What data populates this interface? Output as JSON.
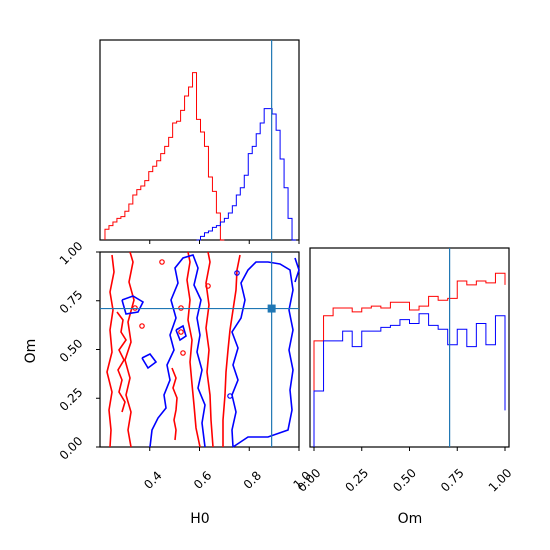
{
  "chart_data": [
    {
      "type": "step-histogram",
      "panel": "H0 marginal",
      "xlim": [
        0.2,
        1.0
      ],
      "bins": [
        0.22,
        0.236,
        0.252,
        0.268,
        0.284,
        0.3,
        0.316,
        0.332,
        0.348,
        0.364,
        0.38,
        0.396,
        0.412,
        0.428,
        0.444,
        0.46,
        0.476,
        0.492,
        0.508,
        0.524,
        0.54,
        0.556,
        0.572,
        0.588,
        0.604,
        0.62,
        0.636,
        0.652,
        0.668,
        0.684,
        0.7,
        0.716,
        0.732,
        0.748,
        0.764,
        0.78,
        0.796,
        0.812,
        0.828,
        0.844,
        0.86,
        0.876,
        0.892,
        0.908,
        0.924,
        0.94,
        0.956,
        0.972,
        0.988,
        1.004
      ],
      "series": [
        {
          "color": "#ff0000",
          "counts": [
            0.06,
            0.08,
            0.1,
            0.12,
            0.13,
            0.16,
            0.2,
            0.25,
            0.28,
            0.3,
            0.33,
            0.38,
            0.41,
            0.44,
            0.48,
            0.52,
            0.57,
            0.65,
            0.66,
            0.72,
            0.8,
            0.85,
            0.93,
            0.67,
            0.6,
            0.52,
            0.35,
            0.27,
            0.15,
            0.0
          ]
        },
        {
          "color": "#0000ff",
          "counts": [
            0.0,
            0.02,
            0.04,
            0.05,
            0.07,
            0.08,
            0.1,
            0.12,
            0.15,
            0.19,
            0.25,
            0.29,
            0.36,
            0.48,
            0.52,
            0.59,
            0.65,
            0.73,
            0.73,
            0.7,
            0.61,
            0.45,
            0.29,
            0.12,
            0.0
          ],
          "start_bin": 23
        }
      ],
      "truth": 0.89
    },
    {
      "type": "contour",
      "panel": "H0 vs Om",
      "xlabel": "H0",
      "ylabel": "Om",
      "xlim": [
        0.2,
        1.0
      ],
      "ylim": [
        0.0,
        1.0
      ],
      "xticks": [
        "0.4",
        "0.6",
        "0.8",
        "1.0"
      ],
      "yticks": [
        "0.00",
        "0.25",
        "0.50",
        "0.75",
        "1.00"
      ],
      "series": [
        {
          "color": "#ff0000",
          "levels": [
            "inner",
            "outer"
          ]
        },
        {
          "color": "#0000ff",
          "levels": [
            "inner",
            "outer"
          ]
        }
      ],
      "truth": {
        "H0": 0.89,
        "Om": 0.71
      }
    },
    {
      "type": "step-histogram",
      "panel": "Om marginal",
      "xlabel": "Om",
      "xlim": [
        0.0,
        1.0
      ],
      "xticks": [
        "0.00",
        "0.25",
        "0.50",
        "0.75",
        "1.00"
      ],
      "bins": [
        0.0,
        0.05,
        0.1,
        0.15,
        0.2,
        0.25,
        0.3,
        0.35,
        0.4,
        0.45,
        0.5,
        0.55,
        0.6,
        0.65,
        0.7,
        0.75,
        0.8,
        0.85,
        0.9,
        0.95,
        1.0
      ],
      "series": [
        {
          "color": "#ff0000",
          "counts": [
            0.55,
            0.68,
            0.72,
            0.72,
            0.7,
            0.72,
            0.73,
            0.72,
            0.75,
            0.75,
            0.71,
            0.73,
            0.78,
            0.76,
            0.77,
            0.86,
            0.84,
            0.86,
            0.85,
            0.9,
            0.84
          ]
        },
        {
          "color": "#0000ff",
          "counts": [
            0.29,
            0.55,
            0.55,
            0.6,
            0.52,
            0.6,
            0.6,
            0.62,
            0.63,
            0.66,
            0.64,
            0.69,
            0.63,
            0.61,
            0.53,
            0.61,
            0.52,
            0.64,
            0.53,
            0.68,
            0.19
          ]
        }
      ],
      "truth": 0.71
    }
  ]
}
